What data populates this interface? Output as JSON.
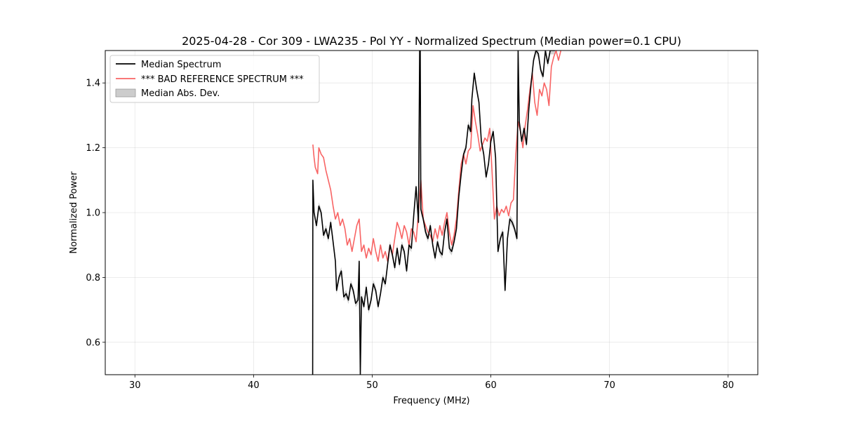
{
  "chart_data": {
    "type": "line",
    "title": "2025-04-28 - Cor 309 - LWA235 - Pol YY - Normalized Spectrum (Median power=0.1 CPU)",
    "xlabel": "Frequency (MHz)",
    "ylabel": "Normalized Power",
    "xlim": [
      27.5,
      82.5
    ],
    "ylim": [
      0.5,
      1.5
    ],
    "xticks": [
      30,
      40,
      50,
      60,
      70,
      80
    ],
    "yticks": [
      0.6,
      0.8,
      1.0,
      1.2,
      1.4
    ],
    "xtick_labels": [
      "30",
      "40",
      "50",
      "60",
      "70",
      "80"
    ],
    "ytick_labels": [
      "0.6",
      "0.8",
      "1.0",
      "1.2",
      "1.4"
    ],
    "grid": true,
    "legend_position": "top-left",
    "legend": [
      {
        "label": "Median Spectrum",
        "kind": "line",
        "color": "#000000"
      },
      {
        "label": "*** BAD REFERENCE SPECTRUM ***",
        "kind": "line",
        "color": "#f86464"
      },
      {
        "label": "Median Abs. Dev.",
        "kind": "patch",
        "color": "#cccccc"
      }
    ],
    "series": [
      {
        "name": "Median Spectrum",
        "color": "#000000",
        "x": [
          44.98,
          45.0,
          45.1,
          45.3,
          45.5,
          45.7,
          45.9,
          46.1,
          46.3,
          46.5,
          46.7,
          46.9,
          47.0,
          47.2,
          47.4,
          47.6,
          47.8,
          48.0,
          48.2,
          48.4,
          48.6,
          48.8,
          48.9,
          49.0,
          49.1,
          49.3,
          49.5,
          49.7,
          49.9,
          50.1,
          50.3,
          50.5,
          50.7,
          50.9,
          51.1,
          51.3,
          51.5,
          51.7,
          51.9,
          52.1,
          52.3,
          52.5,
          52.7,
          52.9,
          53.1,
          53.3,
          53.5,
          53.7,
          53.9,
          54.0,
          54.05,
          54.1,
          54.3,
          54.5,
          54.7,
          54.9,
          55.1,
          55.3,
          55.5,
          55.7,
          55.9,
          56.1,
          56.3,
          56.5,
          56.7,
          56.9,
          57.1,
          57.3,
          57.5,
          57.7,
          57.9,
          58.1,
          58.3,
          58.4,
          58.6,
          58.8,
          59.0,
          59.2,
          59.4,
          59.6,
          59.8,
          60.0,
          60.2,
          60.4,
          60.6,
          60.8,
          61.0,
          61.2,
          61.4,
          61.6,
          61.8,
          62.0,
          62.2,
          62.3,
          62.4,
          62.6,
          62.8,
          63.0,
          63.2,
          63.4,
          63.6,
          63.8,
          64.0,
          64.2,
          64.4,
          64.6,
          64.8,
          65.0,
          65.2,
          65.4
        ],
        "y": [
          0.5,
          1.1,
          1.0,
          0.96,
          1.02,
          1.0,
          0.93,
          0.95,
          0.92,
          0.97,
          0.91,
          0.85,
          0.76,
          0.8,
          0.82,
          0.74,
          0.75,
          0.73,
          0.78,
          0.76,
          0.72,
          0.73,
          0.85,
          0.5,
          0.74,
          0.71,
          0.77,
          0.7,
          0.73,
          0.78,
          0.76,
          0.71,
          0.75,
          0.8,
          0.78,
          0.84,
          0.9,
          0.87,
          0.83,
          0.89,
          0.84,
          0.9,
          0.88,
          0.82,
          0.9,
          0.89,
          0.99,
          1.08,
          0.97,
          1.5,
          1.5,
          1.01,
          0.98,
          0.94,
          0.92,
          0.96,
          0.9,
          0.86,
          0.91,
          0.88,
          0.87,
          0.94,
          0.98,
          0.89,
          0.88,
          0.91,
          0.95,
          1.05,
          1.12,
          1.18,
          1.2,
          1.27,
          1.25,
          1.35,
          1.43,
          1.38,
          1.34,
          1.22,
          1.18,
          1.11,
          1.15,
          1.22,
          1.25,
          1.17,
          0.88,
          0.92,
          0.94,
          0.76,
          0.92,
          0.98,
          0.97,
          0.95,
          0.92,
          1.5,
          1.28,
          1.22,
          1.26,
          1.21,
          1.32,
          1.4,
          1.47,
          1.5,
          1.49,
          1.44,
          1.42,
          1.5,
          1.46,
          1.5,
          1.5,
          1.5
        ]
      },
      {
        "name": "*** BAD REFERENCE SPECTRUM ***",
        "color": "#f86464",
        "x": [
          45.0,
          45.1,
          45.2,
          45.4,
          45.5,
          45.7,
          45.9,
          46.1,
          46.3,
          46.5,
          46.7,
          46.9,
          47.1,
          47.3,
          47.5,
          47.7,
          47.9,
          48.1,
          48.3,
          48.5,
          48.7,
          48.9,
          49.1,
          49.3,
          49.5,
          49.7,
          49.9,
          50.1,
          50.3,
          50.5,
          50.7,
          50.9,
          51.1,
          51.3,
          51.5,
          51.7,
          51.9,
          52.1,
          52.3,
          52.5,
          52.7,
          52.9,
          53.1,
          53.3,
          53.5,
          53.7,
          53.9,
          54.1,
          54.3,
          54.5,
          54.7,
          54.9,
          55.1,
          55.3,
          55.5,
          55.7,
          55.9,
          56.1,
          56.3,
          56.5,
          56.7,
          56.9,
          57.1,
          57.3,
          57.5,
          57.7,
          57.9,
          58.1,
          58.3,
          58.5,
          58.7,
          58.9,
          59.1,
          59.3,
          59.5,
          59.7,
          59.9,
          60.1,
          60.3,
          60.5,
          60.7,
          60.9,
          61.1,
          61.3,
          61.5,
          61.7,
          61.9,
          62.1,
          62.3,
          62.5,
          62.7,
          62.9,
          63.1,
          63.3,
          63.5,
          63.7,
          63.9,
          64.1,
          64.3,
          64.5,
          64.7,
          64.9,
          65.1,
          65.3,
          65.5,
          65.7,
          65.9
        ],
        "y": [
          1.21,
          1.17,
          1.14,
          1.12,
          1.2,
          1.18,
          1.17,
          1.13,
          1.1,
          1.07,
          1.02,
          0.98,
          1.0,
          0.96,
          0.98,
          0.95,
          0.9,
          0.92,
          0.88,
          0.92,
          0.96,
          0.98,
          0.88,
          0.9,
          0.86,
          0.89,
          0.87,
          0.92,
          0.88,
          0.85,
          0.9,
          0.86,
          0.88,
          0.85,
          0.9,
          0.87,
          0.92,
          0.97,
          0.95,
          0.92,
          0.96,
          0.94,
          0.9,
          0.95,
          0.94,
          0.91,
          1.0,
          1.1,
          0.98,
          0.96,
          0.94,
          0.93,
          0.91,
          0.95,
          0.92,
          0.96,
          0.93,
          0.97,
          1.0,
          0.94,
          0.9,
          0.93,
          0.98,
          1.07,
          1.15,
          1.18,
          1.15,
          1.19,
          1.2,
          1.33,
          1.28,
          1.24,
          1.19,
          1.21,
          1.23,
          1.22,
          1.26,
          1.13,
          0.98,
          1.02,
          0.99,
          1.01,
          1.0,
          1.02,
          0.99,
          1.03,
          1.04,
          1.18,
          1.28,
          1.25,
          1.2,
          1.27,
          1.32,
          1.38,
          1.43,
          1.34,
          1.3,
          1.38,
          1.36,
          1.4,
          1.38,
          1.33,
          1.45,
          1.48,
          1.5,
          1.47,
          1.5
        ]
      }
    ]
  }
}
